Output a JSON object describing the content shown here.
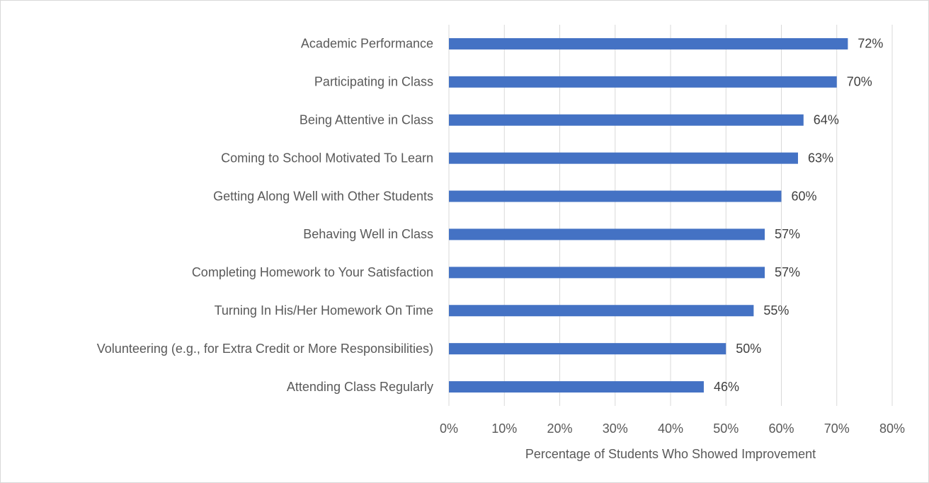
{
  "chart_data": {
    "type": "hbar",
    "x_label": "Percentage of Students Who Showed Improvement",
    "categories": [
      "Academic Performance",
      "Participating in Class",
      "Being Attentive in Class",
      "Coming to School Motivated To Learn",
      "Getting Along Well with Other Students",
      "Behaving Well in Class",
      "Completing Homework to Your Satisfaction",
      "Turning In His/Her Homework On Time",
      "Volunteering (e.g., for Extra Credit or More Responsibilities)",
      "Attending Class Regularly"
    ],
    "values": [
      72,
      70,
      64,
      63,
      60,
      57,
      57,
      55,
      50,
      46
    ],
    "value_labels": [
      "72%",
      "70%",
      "64%",
      "63%",
      "60%",
      "57%",
      "57%",
      "55%",
      "50%",
      "46%"
    ],
    "color": "#4472c4",
    "xlim": [
      0,
      80
    ],
    "xticks": [
      {
        "value": 0,
        "label": "0%"
      },
      {
        "value": 10,
        "label": "10%"
      },
      {
        "value": 20,
        "label": "20%"
      },
      {
        "value": 30,
        "label": "30%"
      },
      {
        "value": 40,
        "label": "40%"
      },
      {
        "value": 50,
        "label": "50%"
      },
      {
        "value": 60,
        "label": "60%"
      },
      {
        "value": 70,
        "label": "70%"
      },
      {
        "value": 80,
        "label": "80%"
      }
    ],
    "grid": true
  }
}
